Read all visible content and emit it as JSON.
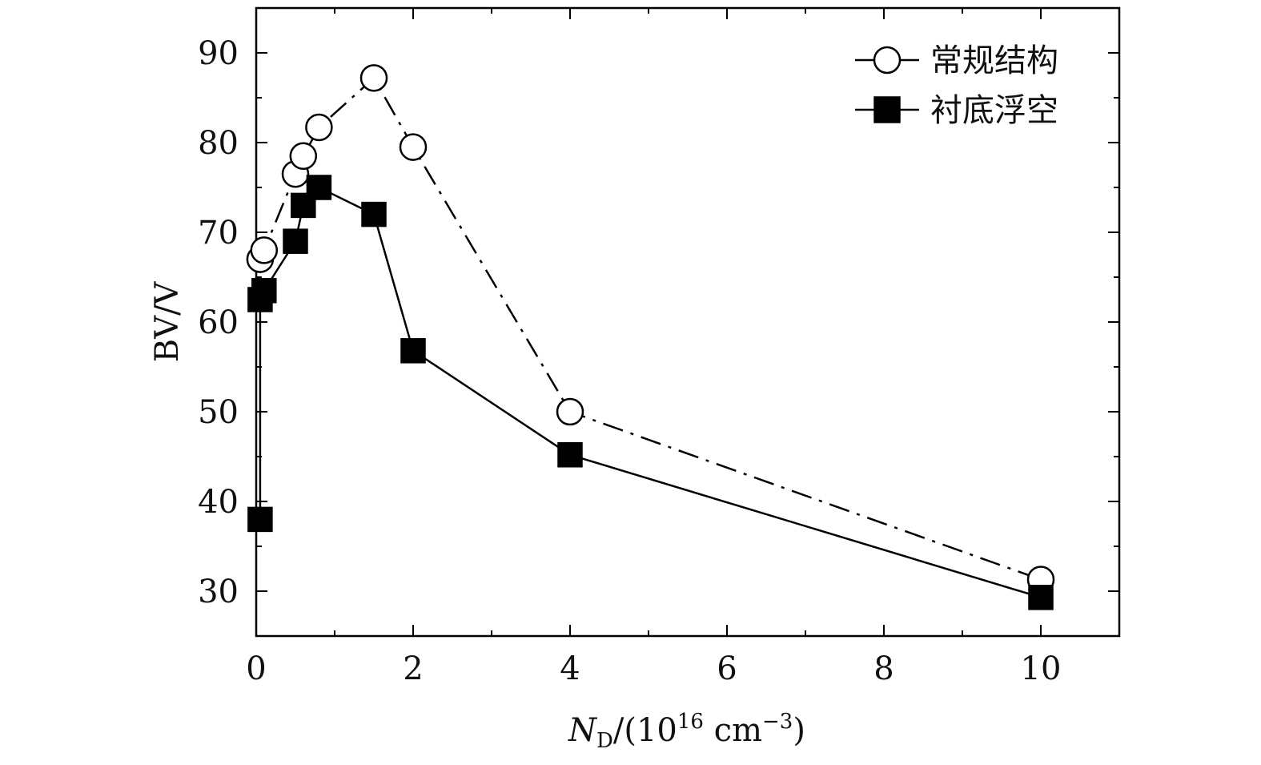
{
  "chart_data": {
    "type": "line",
    "xlabel": {
      "symbol": "N",
      "subscript": "D",
      "unit_prefix": "/(10",
      "unit_exponent": "16",
      "unit_base": " cm",
      "unit_exponent2": "−3",
      "unit_suffix": ")"
    },
    "ylabel": "BV/V",
    "xlim": [
      0,
      11
    ],
    "ylim": [
      25,
      95
    ],
    "xticks": [
      0,
      2,
      4,
      6,
      8,
      10
    ],
    "xtick_labels": [
      "0",
      "2",
      "4",
      "6",
      "8",
      "10"
    ],
    "yticks": [
      30,
      40,
      50,
      60,
      70,
      80,
      90
    ],
    "ytick_labels": [
      "30",
      "40",
      "50",
      "60",
      "70",
      "80",
      "90"
    ],
    "legend_position": "top-right",
    "series": [
      {
        "name": "常规结构",
        "marker": "open-circle",
        "line_style": "dash-dot",
        "x": [
          0.05,
          0.1,
          0.5,
          0.6,
          0.8,
          1.5,
          2,
          4,
          10
        ],
        "y": [
          67,
          68,
          76.5,
          78.5,
          81.7,
          87.2,
          79.5,
          50,
          31.3
        ]
      },
      {
        "name": "衬底浮空",
        "marker": "filled-square",
        "line_style": "solid",
        "x": [
          0.05,
          0.05,
          0.1,
          0.5,
          0.6,
          0.8,
          1.5,
          2,
          4,
          10
        ],
        "y": [
          38,
          62.5,
          63.5,
          69,
          73,
          75,
          72,
          56.8,
          45.2,
          29.3
        ]
      }
    ]
  }
}
